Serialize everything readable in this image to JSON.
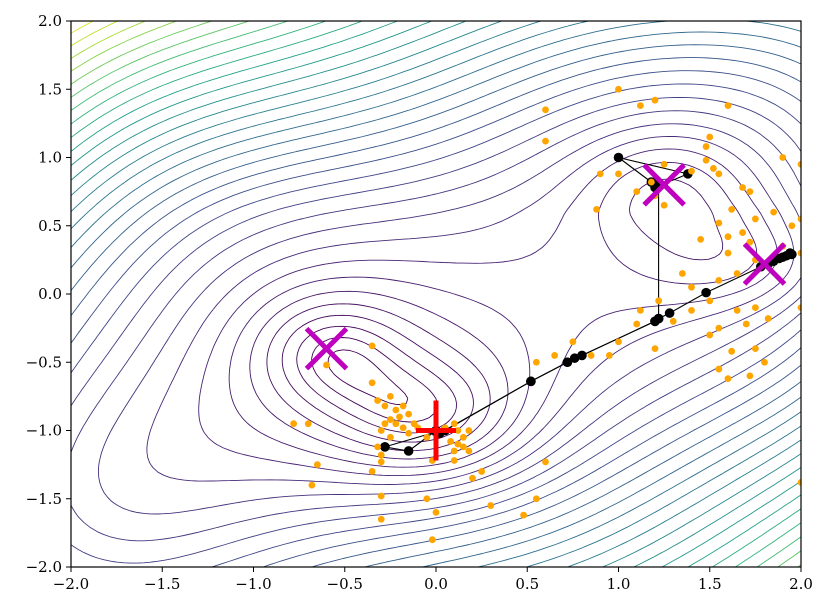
{
  "chart_data": {
    "type": "scatter",
    "title": "",
    "xlabel": "",
    "ylabel": "",
    "xlim": [
      -2.0,
      2.0
    ],
    "ylim": [
      -2.0,
      2.0
    ],
    "grid": false,
    "x_ticks": [
      -2.0,
      -1.5,
      -1.0,
      -0.5,
      0.0,
      0.5,
      1.0,
      1.5,
      2.0
    ],
    "y_ticks": [
      -2.0,
      -1.5,
      -1.0,
      -0.5,
      0.0,
      0.5,
      1.0,
      1.5,
      2.0
    ],
    "x_tick_labels": [
      "−2.0",
      "−1.5",
      "−1.0",
      "−0.5",
      "0.0",
      "0.5",
      "1.0",
      "1.5",
      "2.0"
    ],
    "y_tick_labels": [
      "−2.0",
      "−1.5",
      "−1.0",
      "−0.5",
      "0.0",
      "0.5",
      "1.0",
      "1.5",
      "2.0"
    ],
    "contour_colormap": "viridis",
    "series": [
      {
        "kind": "scatter",
        "color": "#ffa500",
        "points": [
          [
            0.6,
            1.35
          ],
          [
            1.0,
            1.5
          ],
          [
            1.12,
            1.38
          ],
          [
            1.2,
            1.42
          ],
          [
            0.6,
            1.12
          ],
          [
            1.6,
            1.38
          ],
          [
            1.5,
            1.15
          ],
          [
            1.48,
            1.08
          ],
          [
            1.48,
            0.98
          ],
          [
            0.9,
            0.88
          ],
          [
            1.25,
            0.95
          ],
          [
            1.4,
            0.9
          ],
          [
            1.52,
            0.92
          ],
          [
            1.9,
            1.0
          ],
          [
            2.0,
            0.95
          ],
          [
            1.0,
            0.88
          ],
          [
            1.18,
            0.82
          ],
          [
            1.1,
            0.75
          ],
          [
            1.55,
            0.88
          ],
          [
            1.68,
            0.78
          ],
          [
            1.2,
            0.72
          ],
          [
            1.25,
            0.65
          ],
          [
            1.72,
            0.75
          ],
          [
            1.62,
            0.62
          ],
          [
            1.75,
            0.55
          ],
          [
            0.88,
            0.62
          ],
          [
            1.55,
            0.52
          ],
          [
            1.68,
            0.45
          ],
          [
            1.85,
            0.6
          ],
          [
            1.6,
            0.42
          ],
          [
            2.0,
            0.55
          ],
          [
            1.45,
            0.4
          ],
          [
            1.72,
            0.38
          ],
          [
            1.9,
            0.35
          ],
          [
            1.95,
            0.5
          ],
          [
            1.6,
            0.3
          ],
          [
            1.65,
            0.15
          ],
          [
            1.75,
            0.25
          ],
          [
            2.0,
            0.3
          ],
          [
            1.55,
            0.1
          ],
          [
            1.4,
            0.05
          ],
          [
            1.22,
            -0.05
          ],
          [
            1.35,
            0.15
          ],
          [
            1.5,
            -0.05
          ],
          [
            1.65,
            -0.12
          ],
          [
            1.4,
            -0.12
          ],
          [
            1.75,
            -0.1
          ],
          [
            1.12,
            -0.12
          ],
          [
            1.3,
            -0.2
          ],
          [
            1.55,
            -0.25
          ],
          [
            1.7,
            -0.22
          ],
          [
            1.82,
            -0.18
          ],
          [
            1.5,
            -0.3
          ],
          [
            2.0,
            -0.1
          ],
          [
            1.2,
            -0.4
          ],
          [
            1.1,
            -0.22
          ],
          [
            1.0,
            -0.35
          ],
          [
            0.75,
            -0.35
          ],
          [
            1.62,
            -0.42
          ],
          [
            0.95,
            -0.45
          ],
          [
            1.75,
            -0.4
          ],
          [
            1.55,
            -0.55
          ],
          [
            1.8,
            -0.5
          ],
          [
            1.6,
            -0.62
          ],
          [
            1.72,
            -0.6
          ],
          [
            0.85,
            -0.45
          ],
          [
            0.65,
            -0.45
          ],
          [
            0.55,
            -0.5
          ],
          [
            -0.35,
            -0.38
          ],
          [
            -0.6,
            -0.52
          ],
          [
            -0.35,
            -0.65
          ],
          [
            -0.32,
            -0.78
          ],
          [
            -0.28,
            -0.82
          ],
          [
            -0.25,
            -0.75
          ],
          [
            -0.22,
            -0.85
          ],
          [
            -0.2,
            -0.9
          ],
          [
            -0.18,
            -0.82
          ],
          [
            -0.15,
            -0.88
          ],
          [
            -0.25,
            -0.92
          ],
          [
            -0.28,
            -0.95
          ],
          [
            -0.22,
            -0.95
          ],
          [
            -0.18,
            -0.98
          ],
          [
            -0.12,
            -0.95
          ],
          [
            -0.1,
            -0.98
          ],
          [
            -0.15,
            -1.02
          ],
          [
            -0.3,
            -1.0
          ],
          [
            -0.25,
            -1.05
          ],
          [
            -0.05,
            -1.05
          ],
          [
            0.05,
            -0.98
          ],
          [
            0.1,
            -0.95
          ],
          [
            0.12,
            -1.0
          ],
          [
            0.15,
            -1.05
          ],
          [
            0.18,
            -1.0
          ],
          [
            0.08,
            -1.08
          ],
          [
            0.12,
            -1.1
          ],
          [
            0.15,
            -1.12
          ],
          [
            0.18,
            -1.15
          ],
          [
            0.1,
            -1.15
          ],
          [
            -0.78,
            -0.95
          ],
          [
            -0.7,
            -0.95
          ],
          [
            -0.32,
            -1.12
          ],
          [
            -0.3,
            -1.18
          ],
          [
            -0.3,
            -1.23
          ],
          [
            -0.02,
            -1.22
          ],
          [
            0.1,
            -1.22
          ],
          [
            -0.65,
            -1.25
          ],
          [
            -0.35,
            -1.3
          ],
          [
            0.25,
            -1.3
          ],
          [
            0.6,
            -1.23
          ],
          [
            0.2,
            -1.35
          ],
          [
            -0.68,
            -1.4
          ],
          [
            -0.3,
            -1.48
          ],
          [
            -0.05,
            -1.5
          ],
          [
            0.55,
            -1.5
          ],
          [
            0.3,
            -1.55
          ],
          [
            0.48,
            -1.62
          ],
          [
            0.0,
            -1.6
          ],
          [
            -0.3,
            -1.65
          ],
          [
            -0.02,
            -1.8
          ],
          [
            2.0,
            -1.38
          ]
        ]
      },
      {
        "kind": "path",
        "color": "#000000",
        "points": [
          [
            -0.28,
            -1.12
          ],
          [
            -0.15,
            -1.15
          ],
          [
            0.0,
            -1.0
          ],
          [
            0.02,
            -1.02
          ],
          [
            0.05,
            -1.0
          ],
          [
            0.52,
            -0.64
          ],
          [
            0.72,
            -0.5
          ],
          [
            0.76,
            -0.47
          ],
          [
            0.8,
            -0.45
          ],
          [
            1.2,
            -0.2
          ],
          [
            1.22,
            -0.18
          ],
          [
            1.28,
            -0.14
          ],
          [
            1.48,
            0.01
          ],
          [
            1.78,
            0.2
          ],
          [
            1.82,
            0.22
          ],
          [
            1.85,
            0.24
          ],
          [
            1.88,
            0.26
          ],
          [
            1.9,
            0.27
          ],
          [
            1.92,
            0.28
          ],
          [
            1.95,
            0.29
          ],
          [
            1.94,
            0.3
          ]
        ]
      },
      {
        "kind": "path",
        "color": "#000000",
        "points": [
          [
            -0.28,
            -1.12
          ],
          [
            0.0,
            -1.01
          ],
          [
            0.02,
            -1.02
          ],
          [
            0.52,
            -0.64
          ],
          [
            0.72,
            -0.5
          ],
          [
            1.2,
            -0.2
          ],
          [
            1.22,
            -0.18
          ],
          [
            1.22,
            0.8
          ],
          [
            1.18,
            0.82
          ],
          [
            1.0,
            1.0
          ],
          [
            1.38,
            0.88
          ],
          [
            1.2,
            0.78
          ],
          [
            1.22,
            0.8
          ]
        ]
      }
    ],
    "markers": [
      {
        "kind": "x",
        "x": -0.6,
        "y": -0.4,
        "color": "#bf00bf"
      },
      {
        "kind": "x",
        "x": 1.25,
        "y": 0.8,
        "color": "#bf00bf"
      },
      {
        "kind": "x",
        "x": 1.8,
        "y": 0.22,
        "color": "#bf00bf"
      },
      {
        "kind": "plus",
        "x": 0.0,
        "y": -1.0,
        "color": "#ff0000"
      }
    ]
  }
}
